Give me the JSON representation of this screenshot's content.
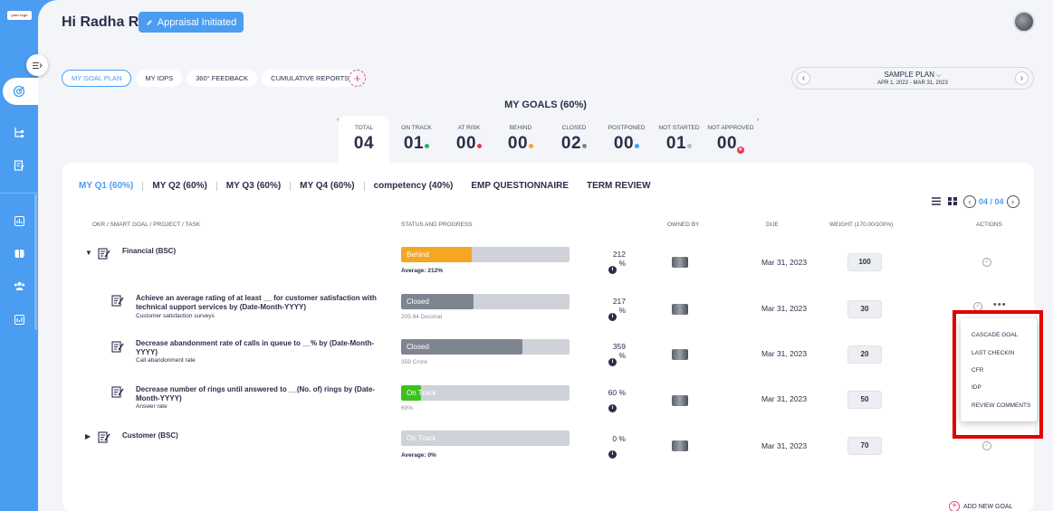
{
  "brand": {
    "logo_text": "your logo"
  },
  "header": {
    "greeting": "Hi Radha R",
    "status_badge": "Appraisal Initiated"
  },
  "sidebar": {
    "icons": [
      "collapse-icon",
      "target-icon",
      "hierarchy-icon",
      "form-icon",
      "chart-icon",
      "book-icon",
      "people-icon",
      "report-icon"
    ]
  },
  "tabs": [
    {
      "label": "MY GOAL PLAN",
      "active": true
    },
    {
      "label": "MY IDPS",
      "active": false
    },
    {
      "label": "360° FEEDBACK",
      "active": false
    },
    {
      "label": "CUMULATIVE REPORTS",
      "active": false
    }
  ],
  "add_tab": "+",
  "plan": {
    "name": "SAMPLE PLAN",
    "dates": "APR 1, 2022 - MAR 31, 2023",
    "prev": "‹",
    "next": "›"
  },
  "goals": {
    "title": "MY GOALS (60%)",
    "stats": [
      {
        "label": "TOTAL",
        "value": "04",
        "dot": ""
      },
      {
        "label": "ON TRACK",
        "value": "01",
        "dot": "#28b463"
      },
      {
        "label": "AT RISK",
        "value": "00",
        "dot": "#e03a52"
      },
      {
        "label": "BEHIND",
        "value": "00",
        "dot": "#f5a623"
      },
      {
        "label": "CLOSED",
        "value": "02",
        "dot": "#7d8591"
      },
      {
        "label": "POSTPONED",
        "value": "00",
        "dot": "#4a9df1"
      },
      {
        "label": "NOT STARTED",
        "value": "01",
        "dot": "#b9bcc4"
      },
      {
        "label": "NOT APPROVED",
        "value": "00",
        "dot": "x"
      }
    ]
  },
  "quarter_tabs": [
    "MY Q1 (60%)",
    "MY Q2 (60%)",
    "MY Q3 (60%)",
    "MY Q4 (60%)",
    "competency (40%)",
    "EMP QUESTIONNAIRE",
    "TERM REVIEW"
  ],
  "pager": {
    "label": "04 / 04",
    "prev": "‹",
    "next": "›"
  },
  "table": {
    "headers": {
      "goal": "OKR / SMART GOAL / PROJECT / TASK",
      "status": "STATUS AND PROGRESS",
      "owner": "OWNED BY",
      "due": "DUE",
      "weight": "WEIGHT (170.00/100%)",
      "actions": "ACTIONS"
    },
    "rows": [
      {
        "caret": "▼",
        "name": "Financial (BSC)",
        "sub": "",
        "status": "Behind",
        "progress": 0.42,
        "color": "#f5a623",
        "note": "Average: 212%",
        "pct": "212 %",
        "due": "Mar 31, 2023",
        "weight": "100"
      },
      {
        "caret": "",
        "name": "Achieve an average rating of at least __ for customer satisfaction with technical support services by (Date-Month-YYYY)",
        "sub": "Customer satisfaction surveys",
        "status": "Closed",
        "progress": 0.43,
        "color": "#7d8591",
        "note": "205.94 Decimal",
        "pct": "217 %",
        "due": "Mar 31, 2023",
        "weight": "30"
      },
      {
        "caret": "",
        "name": "Decrease abandonment rate of calls in queue to __% by (Date-Month-YYYY)",
        "sub": "Call abandonment rate",
        "status": "Closed",
        "progress": 0.72,
        "color": "#7d8591",
        "note": "359 Crore",
        "pct": "359 %",
        "due": "Mar 31, 2023",
        "weight": "20"
      },
      {
        "caret": "",
        "name": "Decrease number of rings until answered to __(No. of) rings by (Date-Month-YYYY)",
        "sub": "Answer rate",
        "status": "On Track",
        "progress": 0.12,
        "color": "#3cc21e",
        "note": "60%",
        "pct": "60 %",
        "due": "Mar 31, 2023",
        "weight": "50"
      },
      {
        "caret": "▶",
        "name": "Customer (BSC)",
        "sub": "",
        "status": "On Track",
        "progress": 0,
        "color": "#3cc21e",
        "note": "Average: 0%",
        "pct": "0 %",
        "due": "Mar 31, 2023",
        "weight": "70"
      }
    ]
  },
  "action_menu": [
    "CASCADE GOAL",
    "LAST CHECKIN",
    "CFR",
    "IDP",
    "REVIEW COMMENTS"
  ],
  "add_goal": "ADD NEW GOAL",
  "info_glyph": "i",
  "check_glyph": "✓",
  "more_glyph": "•••"
}
